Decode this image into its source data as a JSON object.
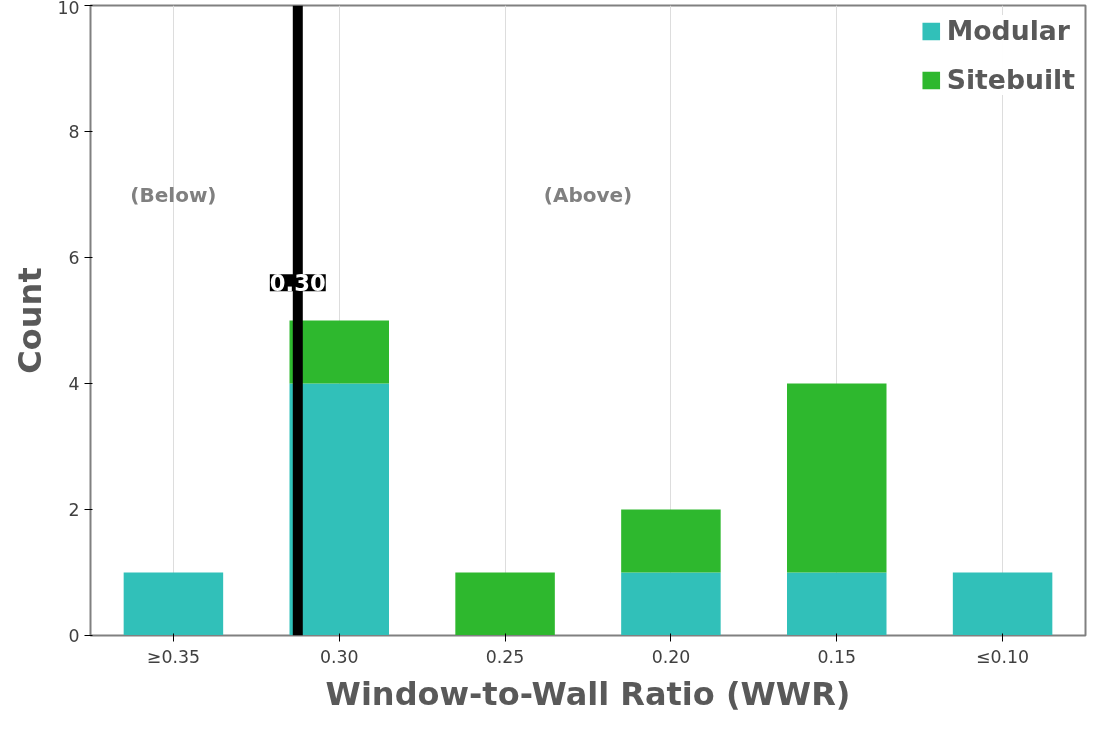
{
  "chart_data": {
    "type": "bar",
    "stacked": true,
    "xlabel": "Window-to-Wall Ratio (WWR)",
    "ylabel": "Count",
    "categories": [
      "≥0.35",
      "0.30",
      "0.25",
      "0.20",
      "0.15",
      "≤0.10"
    ],
    "series": [
      {
        "name": "Modular",
        "color": "#31c0b9",
        "values": [
          1,
          4,
          0,
          1,
          1,
          1
        ]
      },
      {
        "name": "Sitebuilt",
        "color": "#2eb82e",
        "values": [
          0,
          1,
          1,
          1,
          3,
          0
        ]
      }
    ],
    "ylim": [
      0,
      10
    ],
    "yticks": [
      0,
      2,
      4,
      6,
      8,
      10
    ],
    "ref_lines": [
      {
        "axis": "x",
        "value": "0.30",
        "label": "0.30",
        "color": "#000000"
      }
    ],
    "annotations": [
      "(Below)",
      "(Above)"
    ],
    "grid": "x",
    "legend": "top right"
  }
}
